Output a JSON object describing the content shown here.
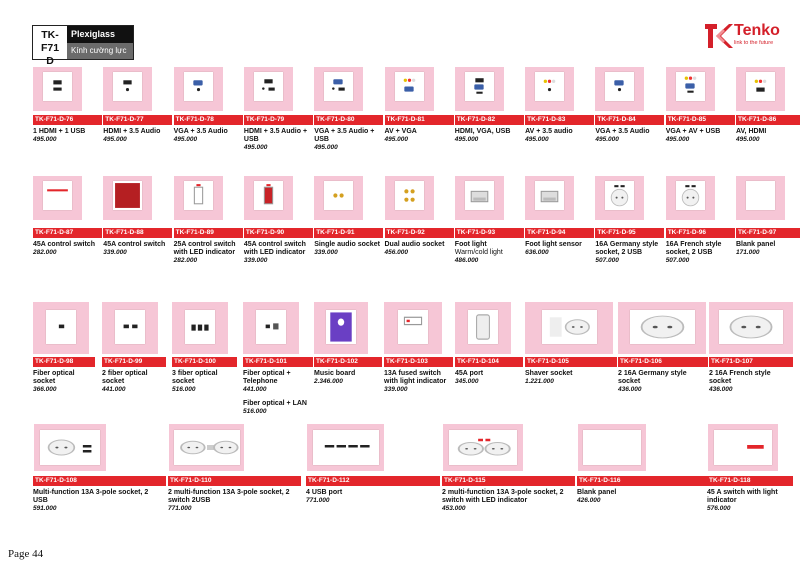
{
  "header": {
    "code_line1": "TK-F71",
    "code_line2": "D",
    "material_en": "Plexiglass",
    "material_vi": "Kính cường lực"
  },
  "brand": {
    "name": "Tenko",
    "tagline": "link to the future",
    "color": "#d4202a"
  },
  "accent_color": "#e3262b",
  "plate_bg_color": "#f6c6d6",
  "page_number": "Page 44",
  "rows": [
    [
      {
        "code": "TK-F71-D-76",
        "desc": "1 HDMI + 1 USB",
        "price": "495.000",
        "icon": "hdmi-usb"
      },
      {
        "code": "TK-F71-D-77",
        "desc": "HDMI + 3.5 Audio",
        "price": "495.000",
        "icon": "hdmi-audio"
      },
      {
        "code": "TK-F71-D-78",
        "desc": "VGA + 3.5 Audio",
        "price": "495.000",
        "icon": "vga-audio"
      },
      {
        "code": "TK-F71-D-79",
        "desc": "HDMI + 3.5 Audio + USB",
        "price": "495.000",
        "icon": "hdmi-audio-usb"
      },
      {
        "code": "TK-F71-D-80",
        "desc": "VGA + 3.5 Audio + USB",
        "price": "495.000",
        "icon": "vga-audio-usb"
      },
      {
        "code": "TK-F71-D-81",
        "desc": "AV + VGA",
        "price": "495.000",
        "icon": "av-vga"
      },
      {
        "code": "TK-F71-D-82",
        "desc": "HDMI, VGA, USB",
        "price": "495.000",
        "icon": "hdmi-vga-usb"
      },
      {
        "code": "TK-F71-D-83",
        "desc": "AV + 3.5 audio",
        "price": "495.000",
        "icon": "av-audio"
      },
      {
        "code": "TK-F71-D-84",
        "desc": "VGA + 3.5 Audio",
        "price": "495.000",
        "icon": "vga-audio"
      },
      {
        "code": "TK-F71-D-85",
        "desc": "VGA + AV + USB",
        "price": "495.000",
        "icon": "vga-av-usb"
      },
      {
        "code": "TK-F71-D-86",
        "desc": "AV, HDMI",
        "price": "495.000",
        "icon": "av-hdmi"
      }
    ],
    [
      {
        "code": "TK-F71-D-87",
        "desc": "45A control switch",
        "price": "282.000",
        "icon": "control-switch"
      },
      {
        "code": "TK-F71-D-88",
        "desc": "45A control switch",
        "price": "339.000",
        "icon": "red-panel"
      },
      {
        "code": "TK-F71-D-89",
        "desc": "25A control switch with LED indicator",
        "price": "282.000",
        "icon": "rocker-white"
      },
      {
        "code": "TK-F71-D-90",
        "desc": "45A control switch with LED indicator",
        "price": "339.000",
        "icon": "rocker-red"
      },
      {
        "code": "TK-F71-D-91",
        "desc": "Single audio socket",
        "price": "339.000",
        "icon": "single-audio"
      },
      {
        "code": "TK-F71-D-92",
        "desc": "Dual audio socket",
        "price": "456.000",
        "icon": "dual-audio"
      },
      {
        "code": "TK-F71-D-93",
        "desc": "Foot light",
        "sub": "Warm/cold light",
        "price": "486.000",
        "icon": "foot-light"
      },
      {
        "code": "TK-F71-D-94",
        "desc": "Foot light sensor",
        "price": "636.000",
        "icon": "foot-light-sensor"
      },
      {
        "code": "TK-F71-D-95",
        "desc": "16A Germany style socket, 2 USB",
        "price": "507.000",
        "icon": "germany-usb"
      },
      {
        "code": "TK-F71-D-96",
        "desc": "16A French style socket, 2 USB",
        "price": "507.000",
        "icon": "french-usb"
      },
      {
        "code": "TK-F71-D-97",
        "desc": "Blank panel",
        "price": "171.000",
        "icon": "blank"
      }
    ]
  ],
  "row3": [
    {
      "code": "TK-F71-D-98",
      "desc": "Fiber optical socket",
      "price": "366.000",
      "icon": "fiber-1"
    },
    {
      "code": "TK-F71-D-99",
      "desc": "2 fiber optical socket",
      "price": "441.000",
      "icon": "fiber-2"
    },
    {
      "code": "TK-F71-D-100",
      "desc": "3 fiber optical socket",
      "price": "516.000",
      "icon": "fiber-3"
    },
    {
      "code": "TK-F71-D-101",
      "desc": "Fiber optical + Telephone",
      "price": "441.000",
      "desc2": "Fiber optical + LAN",
      "price2": "516.000",
      "icon": "fiber-tel"
    },
    {
      "code": "TK-F71-D-102",
      "desc": "Music board",
      "price": "2.346.000",
      "icon": "music-board"
    },
    {
      "code": "TK-F71-D-103",
      "desc": "13A fused switch with light indicator",
      "price": "339.000",
      "icon": "fused-switch"
    },
    {
      "code": "TK-F71-D-104",
      "desc": "45A port",
      "price": "345.000",
      "icon": "port-45a"
    },
    {
      "code": "TK-F71-D-105",
      "desc": "Shaver socket",
      "price": "1.221.000",
      "icon": "shaver"
    },
    {
      "code": "TK-F71-D-106",
      "desc": "2 16A Germany style socket",
      "price": "436.000",
      "icon": "germany-2"
    },
    {
      "code": "TK-F71-D-107",
      "desc": "2 16A French style socket",
      "price": "436.000",
      "icon": "french-2"
    }
  ],
  "row4": [
    {
      "code": "TK-F71-D-108",
      "desc": "Multi-function 13A 3-pole socket, 2 USB",
      "price": "591.000",
      "icon": "multi-usb"
    },
    {
      "code": "TK-F71-D-110",
      "desc": "2 multi-function 13A 3-pole socket, 2 switch 2USB",
      "price": "771.000",
      "icon": "multi-2-usb"
    },
    {
      "code": "TK-F71-D-112",
      "desc": "4 USB port",
      "price": "771.000",
      "icon": "usb-4"
    },
    {
      "code": "TK-F71-D-115",
      "desc": "2 multi-function 13A 3-pole socket, 2 switch with LED indicator",
      "price": "453.000",
      "icon": "multi-2-led"
    },
    {
      "code": "TK-F71-D-116",
      "desc": "Blank panel",
      "price": "426.000",
      "icon": "blank-double"
    },
    {
      "code": "TK-F71-D-118",
      "desc": "45 A switch with light indicator",
      "price": "576.000",
      "icon": "switch-45a-light"
    }
  ]
}
